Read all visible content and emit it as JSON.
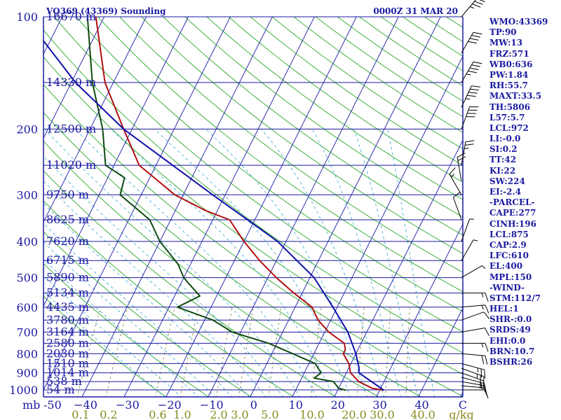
{
  "title": "VQ369 (43369) Sounding",
  "datetime": "0000Z 31 MAR 20",
  "indices": [
    "WMO:43369",
    "TP:90",
    "MW:13",
    "FRZ:571",
    "WB0:636",
    "PW:1.84",
    "RH:55.7",
    "MAXT:33.5",
    "TH:5806",
    "L57:5.7",
    "LCL:972",
    "LI:-0.0",
    "SI:0.2",
    "TT:42",
    "KI:22",
    "SW:224",
    "EI:-2.4",
    "-PARCEL-",
    "CAPE:277",
    "CINH:196",
    "LCL:875",
    "CAP:2.9",
    "LFC:610",
    "EL:400",
    "MPL:150",
    "-WIND-",
    "STM:112/7",
    "HEL:1",
    "SHR-:0.0",
    "SRDS:49",
    "EHI:0.0",
    "BRN:10.7",
    "BSHR:26"
  ],
  "colors": {
    "isobar": "#1a1aa0",
    "isotherm": "#3030b0",
    "dry_adiabat": "#28a828",
    "moist_adiabat": "#4ab0d8",
    "mixing_ratio": "#8a8a50",
    "temperature": "#b01010",
    "dewpoint": "#104a10",
    "parcel": "#1010a8"
  },
  "chart_data": {
    "type": "line",
    "title": "VQ369 (43369) Sounding",
    "subtitle": "0000Z 31 MAR 20",
    "xlabel": "C",
    "ylabel": "mb",
    "x_unit": "°C",
    "y_scale": "log-pressure",
    "ylim": [
      1000,
      100
    ],
    "xlim": [
      -50,
      50
    ],
    "pressure_ticks": [
      100,
      200,
      300,
      400,
      500,
      600,
      700,
      800,
      900,
      1000
    ],
    "temp_ticks": [
      -50,
      -40,
      -30,
      -20,
      -10,
      0,
      10,
      20,
      30,
      40
    ],
    "temp_tick_labels": [
      "-50",
      "−40",
      "−30",
      "−20",
      "−10",
      "0",
      "10",
      "20",
      "30",
      "40"
    ],
    "mixing_ratio_labels": [
      "0.1",
      "0.2",
      "0.6",
      "1.0",
      "2.0",
      "3.0",
      "5.0",
      "10.0",
      "20.0",
      "30.0",
      "40.0"
    ],
    "mixing_ratio_unit": "g/kg",
    "height_labels": [
      {
        "p": 100,
        "label": "16670 m"
      },
      {
        "p": 150,
        "label": "14330 m"
      },
      {
        "p": 200,
        "label": "12500 m"
      },
      {
        "p": 250,
        "label": "11020 m"
      },
      {
        "p": 300,
        "label": "9750 m"
      },
      {
        "p": 350,
        "label": "8625 m"
      },
      {
        "p": 400,
        "label": "7620 m"
      },
      {
        "p": 450,
        "label": "6715 m"
      },
      {
        "p": 500,
        "label": "5890 m"
      },
      {
        "p": 550,
        "label": "5134 m"
      },
      {
        "p": 600,
        "label": "4435 m"
      },
      {
        "p": 650,
        "label": "3780 m"
      },
      {
        "p": 700,
        "label": "3164 m"
      },
      {
        "p": 750,
        "label": "2580 m"
      },
      {
        "p": 800,
        "label": "2030 m"
      },
      {
        "p": 850,
        "label": "1510 m"
      },
      {
        "p": 900,
        "label": "1014 m"
      },
      {
        "p": 950,
        "label": "538 m"
      },
      {
        "p": 1000,
        "label": "54 m"
      }
    ],
    "series": [
      {
        "id": "temperature",
        "points": [
          [
            1002,
            31
          ],
          [
            990,
            28
          ],
          [
            950,
            24
          ],
          [
            900,
            21
          ],
          [
            850,
            19.5
          ],
          [
            800,
            17
          ],
          [
            780,
            17
          ],
          [
            750,
            16
          ],
          [
            700,
            11
          ],
          [
            650,
            7
          ],
          [
            600,
            4
          ],
          [
            550,
            -2
          ],
          [
            500,
            -8
          ],
          [
            450,
            -14
          ],
          [
            400,
            -20
          ],
          [
            350,
            -26
          ],
          [
            330,
            -33
          ],
          [
            300,
            -42
          ],
          [
            250,
            -54
          ],
          [
            200,
            -62
          ],
          [
            150,
            -72
          ],
          [
            100,
            -82
          ]
        ]
      },
      {
        "id": "dewpoint",
        "points": [
          [
            1002,
            22
          ],
          [
            990,
            20
          ],
          [
            950,
            18
          ],
          [
            930,
            13
          ],
          [
            900,
            14
          ],
          [
            850,
            11.5
          ],
          [
            800,
            5
          ],
          [
            750,
            -2
          ],
          [
            700,
            -12
          ],
          [
            650,
            -18
          ],
          [
            600,
            -28
          ],
          [
            560,
            -24
          ],
          [
            520,
            -28
          ],
          [
            500,
            -30
          ],
          [
            460,
            -33
          ],
          [
            400,
            -40
          ],
          [
            350,
            -45
          ],
          [
            300,
            -55
          ],
          [
            270,
            -56
          ],
          [
            250,
            -62
          ],
          [
            200,
            -67
          ],
          [
            150,
            -75
          ],
          [
            100,
            -84
          ]
        ]
      },
      {
        "id": "parcel",
        "points": [
          [
            1002,
            31
          ],
          [
            900,
            23
          ],
          [
            875,
            22.5
          ],
          [
            800,
            20
          ],
          [
            700,
            15.5
          ],
          [
            600,
            9
          ],
          [
            500,
            1
          ],
          [
            400,
            -12
          ],
          [
            300,
            -33
          ],
          [
            200,
            -62
          ],
          [
            150,
            -79
          ],
          [
            115,
            -92
          ]
        ]
      }
    ],
    "wind_barbs": [
      {
        "p": 1000,
        "dir": 90,
        "spd": 10
      },
      {
        "p": 975,
        "dir": 95,
        "spd": 10
      },
      {
        "p": 950,
        "dir": 100,
        "spd": 15
      },
      {
        "p": 925,
        "dir": 105,
        "spd": 15
      },
      {
        "p": 900,
        "dir": 110,
        "spd": 20
      },
      {
        "p": 875,
        "dir": 110,
        "spd": 25
      },
      {
        "p": 850,
        "dir": 105,
        "spd": 25
      },
      {
        "p": 800,
        "dir": 95,
        "spd": 20
      },
      {
        "p": 750,
        "dir": 90,
        "spd": 15
      },
      {
        "p": 700,
        "dir": 80,
        "spd": 10
      },
      {
        "p": 650,
        "dir": 70,
        "spd": 10
      },
      {
        "p": 600,
        "dir": 85,
        "spd": 15
      },
      {
        "p": 550,
        "dir": 90,
        "spd": 15
      },
      {
        "p": 500,
        "dir": 60,
        "spd": 5
      },
      {
        "p": 450,
        "dir": 30,
        "spd": 5
      },
      {
        "p": 400,
        "dir": 20,
        "spd": 5
      },
      {
        "p": 350,
        "dir": 340,
        "spd": 10
      },
      {
        "p": 300,
        "dir": 330,
        "spd": 15
      },
      {
        "p": 275,
        "dir": 350,
        "spd": 20
      },
      {
        "p": 250,
        "dir": 10,
        "spd": 25
      },
      {
        "p": 200,
        "dir": 20,
        "spd": 40
      },
      {
        "p": 175,
        "dir": 25,
        "spd": 45
      },
      {
        "p": 150,
        "dir": 30,
        "spd": 45
      },
      {
        "p": 125,
        "dir": 30,
        "spd": 40
      },
      {
        "p": 100,
        "dir": 40,
        "spd": 35
      }
    ]
  }
}
